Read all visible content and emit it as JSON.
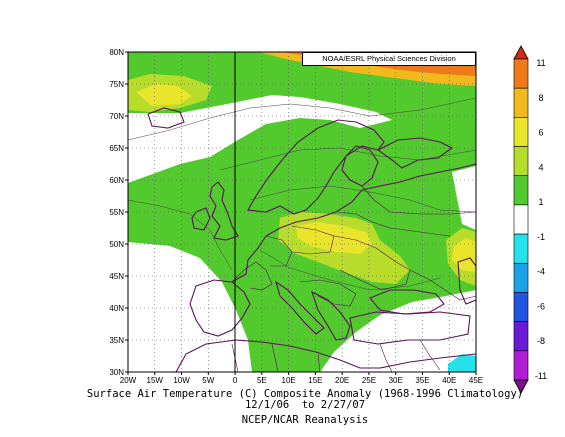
{
  "map": {
    "credit": "NOAA/ESRL Physical Sciences Division",
    "lat_ticks": [
      "80N",
      "75N",
      "70N",
      "65N",
      "60N",
      "55N",
      "50N",
      "45N",
      "40N",
      "35N",
      "30N"
    ],
    "lon_ticks": [
      "20W",
      "15W",
      "10W",
      "5W",
      "0",
      "5E",
      "10E",
      "15E",
      "20E",
      "25E",
      "30E",
      "35E",
      "40E",
      "45E"
    ],
    "extent": {
      "lon": [
        -20,
        45
      ],
      "lat": [
        30,
        80
      ]
    },
    "grid": "dotted"
  },
  "colorbar": {
    "labels": [
      "11",
      "8",
      "6",
      "4",
      "1",
      "-1",
      "-4",
      "-6",
      "-8",
      "-11"
    ],
    "colors": [
      "#d52a17",
      "#ee7a1a",
      "#f2b91e",
      "#e8e52b",
      "#b8dc2a",
      "#52c92c",
      "#ffffff",
      "#25e1e9",
      "#1aa2e8",
      "#2255df",
      "#6a1ad7",
      "#b21ed3",
      "#7a1285"
    ]
  },
  "caption": {
    "line1": "Surface Air Temperature (C) Composite Anomaly (1968-1996 Climatology)",
    "line2": "12/1/06  to 2/27/07",
    "line3": "NCEP/NCAR Reanalysis"
  }
}
